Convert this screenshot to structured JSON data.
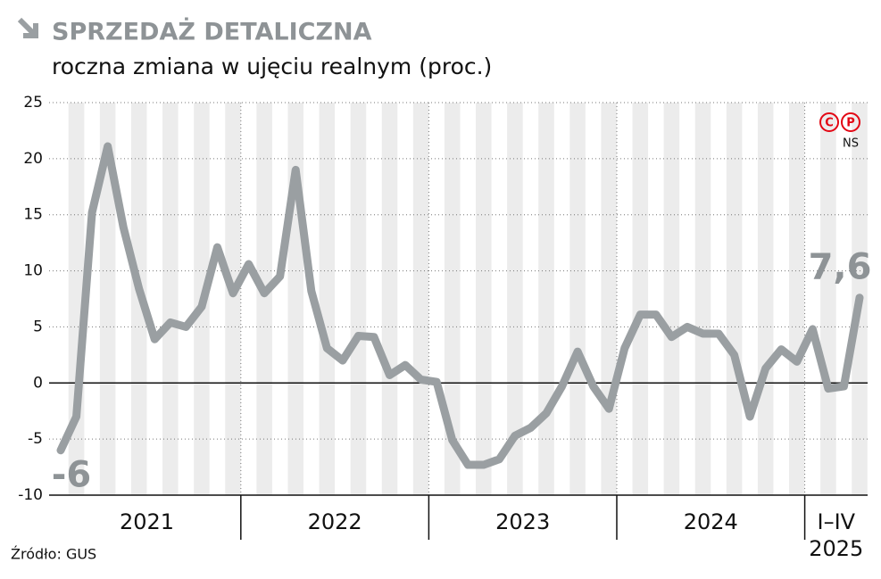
{
  "chart_data": {
    "type": "line",
    "title": "SPRZEDAŻ DETALICZNA",
    "subtitle": "roczna zmiana w ujęciu realnym (proc.)",
    "source": "Źródło: GUS",
    "logo": {
      "marks": [
        "C",
        "P"
      ],
      "text": "NS"
    },
    "categories": [
      "2021",
      "2021",
      "2021",
      "2021",
      "2021",
      "2021",
      "2021",
      "2021",
      "2021",
      "2021",
      "2021",
      "2021",
      "2022",
      "2022",
      "2022",
      "2022",
      "2022",
      "2022",
      "2022",
      "2022",
      "2022",
      "2022",
      "2022",
      "2022",
      "2023",
      "2023",
      "2023",
      "2023",
      "2023",
      "2023",
      "2023",
      "2023",
      "2023",
      "2023",
      "2023",
      "2023",
      "2024",
      "2024",
      "2024",
      "2024",
      "2024",
      "2024",
      "2024",
      "2024",
      "2024",
      "2024",
      "2024",
      "2024",
      "I–IV 2025",
      "I–IV 2025",
      "I–IV 2025",
      "I–IV 2025"
    ],
    "series": [
      {
        "name": "Sprzedaż detaliczna",
        "color": "#9a9fa2",
        "values": [
          -6,
          -3.0,
          15.2,
          21.1,
          13.9,
          8.4,
          3.9,
          5.4,
          5.0,
          6.8,
          12.1,
          8.0,
          10.6,
          8.0,
          9.5,
          19.0,
          8.2,
          3.1,
          2.0,
          4.2,
          4.1,
          0.7,
          1.6,
          0.3,
          0.1,
          -5.1,
          -7.3,
          -7.3,
          -6.8,
          -4.7,
          -4.0,
          -2.7,
          -0.3,
          2.8,
          -0.3,
          -2.3,
          3.1,
          6.1,
          6.1,
          4.1,
          5.0,
          4.4,
          4.4,
          2.5,
          -3.0,
          1.3,
          3.0,
          1.9,
          4.8,
          -0.5,
          -0.3,
          7.6
        ],
        "value_labels": [
          "-6",
          null,
          null,
          null,
          null,
          null,
          null,
          null,
          null,
          null,
          null,
          null,
          null,
          null,
          null,
          null,
          null,
          null,
          null,
          null,
          null,
          null,
          null,
          null,
          null,
          null,
          null,
          null,
          null,
          null,
          null,
          null,
          null,
          null,
          null,
          null,
          null,
          null,
          null,
          null,
          null,
          null,
          null,
          null,
          null,
          null,
          null,
          null,
          null,
          null,
          null,
          "7,6"
        ]
      }
    ],
    "ylim": [
      -10,
      25
    ],
    "yticks": [
      -10,
      -5,
      0,
      5,
      10,
      15,
      20,
      25
    ],
    "grid": true
  }
}
